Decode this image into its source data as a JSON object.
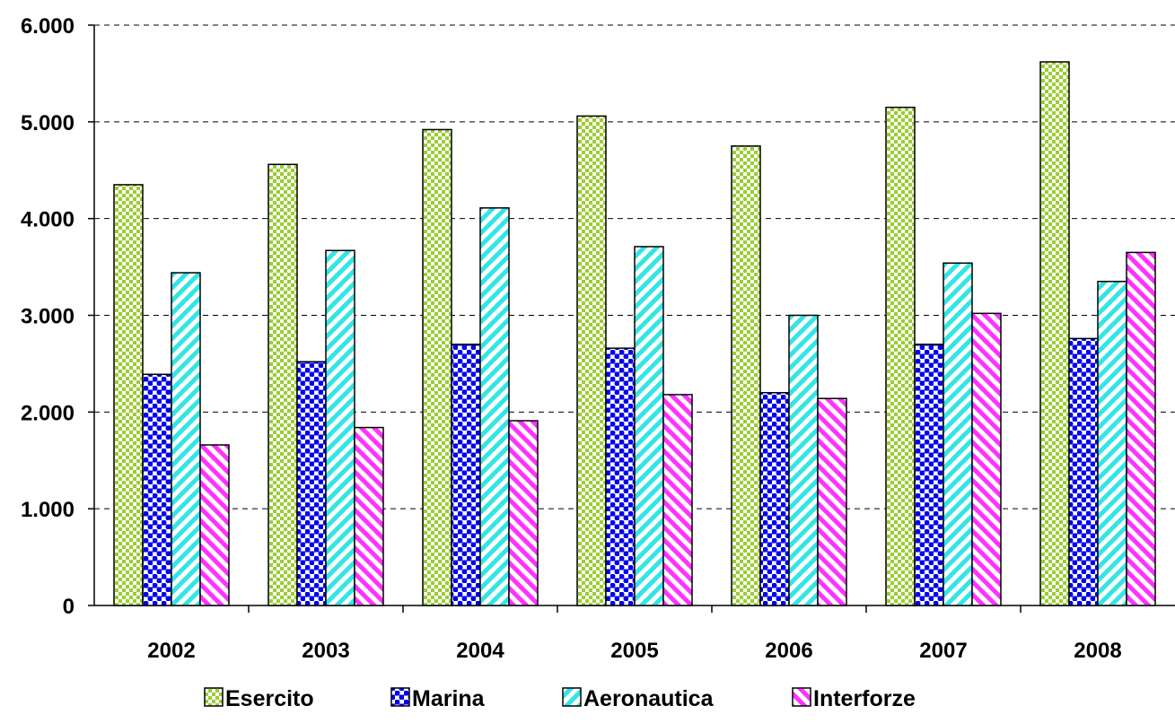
{
  "chart_data": {
    "type": "bar",
    "categories": [
      "2002",
      "2003",
      "2004",
      "2005",
      "2006",
      "2007",
      "2008"
    ],
    "series": [
      {
        "name": "Esercito",
        "color": "#9ACD32",
        "pattern": "checker",
        "values": [
          4350,
          4560,
          4920,
          5060,
          4750,
          5150,
          5620
        ]
      },
      {
        "name": "Marina",
        "color": "#0000EE",
        "pattern": "dots",
        "values": [
          2390,
          2520,
          2700,
          2660,
          2200,
          2700,
          2760
        ]
      },
      {
        "name": "Aeronautica",
        "color": "#33E5E5",
        "pattern": "diagonal-up",
        "values": [
          3440,
          3670,
          4110,
          3710,
          3000,
          3540,
          3350
        ]
      },
      {
        "name": "Interforze",
        "color": "#FF33FF",
        "pattern": "diagonal-down",
        "values": [
          1660,
          1840,
          1910,
          2180,
          2140,
          3020,
          3650
        ]
      }
    ],
    "yticks": [
      "0",
      "1.000",
      "2.000",
      "3.000",
      "4.000",
      "5.000",
      "6.000"
    ],
    "ylim": [
      0,
      6000
    ],
    "grid": true,
    "legend_position": "bottom"
  }
}
